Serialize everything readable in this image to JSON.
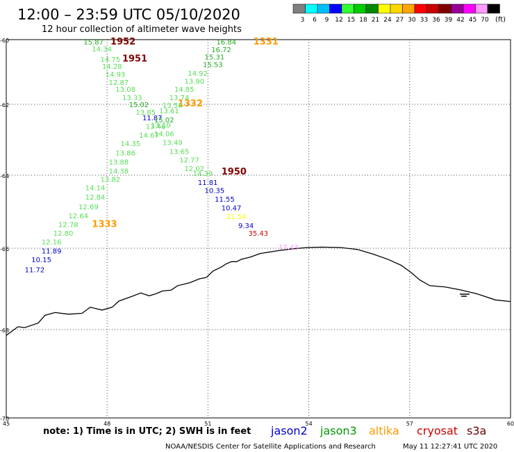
{
  "header": {
    "title": "12:00 – 23:59 UTC 05/10/2020",
    "subtitle": "12 hour collection of altimeter wave heights"
  },
  "legend": {
    "unit": "(ft)",
    "bins": [
      {
        "label": "3",
        "color": "#7f7f7f"
      },
      {
        "label": "6",
        "color": "#00ffff"
      },
      {
        "label": "9",
        "color": "#00bfff"
      },
      {
        "label": "12",
        "color": "#0000ff"
      },
      {
        "label": "15",
        "color": "#33ff33"
      },
      {
        "label": "18",
        "color": "#00cc00"
      },
      {
        "label": "21",
        "color": "#008800"
      },
      {
        "label": "24",
        "color": "#ffff00"
      },
      {
        "label": "27",
        "color": "#ffd700"
      },
      {
        "label": "30",
        "color": "#ffa500"
      },
      {
        "label": "33",
        "color": "#ff0000"
      },
      {
        "label": "36",
        "color": "#cc0000"
      },
      {
        "label": "39",
        "color": "#800000"
      },
      {
        "label": "42",
        "color": "#990099"
      },
      {
        "label": "45",
        "color": "#ff00ff"
      },
      {
        "label": "70",
        "color": "#ff99ff"
      },
      {
        "label": "",
        "color": "#000000"
      }
    ]
  },
  "axes": {
    "lat_labels": [
      "-60",
      "-62",
      "-64",
      "-66",
      "-68",
      "-70"
    ],
    "lon_labels": [
      "45",
      "48",
      "51",
      "54",
      "57",
      "60"
    ]
  },
  "note": "note:  1) Time is in UTC; 2) SWH is in feet",
  "satellites": [
    {
      "name": "jason2",
      "color": "#0000cc"
    },
    {
      "name": "jason3",
      "color": "#009900"
    },
    {
      "name": "altika",
      "color": "#ff9900"
    },
    {
      "name": "cryosat",
      "color": "#cc0000"
    },
    {
      "name": "s3a",
      "color": "#660000"
    }
  ],
  "footer": {
    "credit": "NOAA/NESDIS Center for Satellite Applications and Research",
    "timestamp": "May 11 12:27:41 UTC 2020"
  },
  "observations": [
    {
      "lat": -60.06,
      "lon": 47.3,
      "text": "15.87",
      "color": "#22aa22"
    },
    {
      "lat": -60.06,
      "lon": 48.1,
      "text": "1952",
      "color": "#800000",
      "bold": true
    },
    {
      "lat": -60.28,
      "lon": 47.55,
      "text": "14.34",
      "color": "#55dd55"
    },
    {
      "lat": -60.59,
      "lon": 48.45,
      "text": "1951",
      "color": "#800000",
      "bold": true
    },
    {
      "lat": -60.6,
      "lon": 47.8,
      "text": "14.75",
      "color": "#55dd55"
    },
    {
      "lat": -60.82,
      "lon": 47.85,
      "text": "14.28",
      "color": "#55dd55"
    },
    {
      "lat": -61.06,
      "lon": 47.95,
      "text": "14.93",
      "color": "#55dd55"
    },
    {
      "lat": -61.31,
      "lon": 48.05,
      "text": "12.87",
      "color": "#55dd55"
    },
    {
      "lat": -61.53,
      "lon": 48.25,
      "text": "13.08",
      "color": "#55dd55"
    },
    {
      "lat": -61.78,
      "lon": 48.45,
      "text": "13.33",
      "color": "#55dd55"
    },
    {
      "lat": -62.0,
      "lon": 48.65,
      "text": "15.02",
      "color": "#22aa22"
    },
    {
      "lat": -62.22,
      "lon": 48.85,
      "text": "13.85",
      "color": "#55dd55"
    },
    {
      "lat": -62.37,
      "lon": 49.05,
      "text": "11.87",
      "color": "#0000cc"
    },
    {
      "lat": -62.62,
      "lon": 49.15,
      "text": "13.46",
      "color": "#55dd55"
    },
    {
      "lat": -62.86,
      "lon": 48.95,
      "text": "14.67",
      "color": "#55dd55"
    },
    {
      "lat": -63.1,
      "lon": 48.4,
      "text": "14.35",
      "color": "#55dd55"
    },
    {
      "lat": -63.36,
      "lon": 48.25,
      "text": "13.86",
      "color": "#55dd55"
    },
    {
      "lat": -63.62,
      "lon": 48.05,
      "text": "13.88",
      "color": "#55dd55"
    },
    {
      "lat": -63.87,
      "lon": 48.05,
      "text": "14.38",
      "color": "#55dd55"
    },
    {
      "lat": -64.1,
      "lon": 47.8,
      "text": "13.82",
      "color": "#55dd55"
    },
    {
      "lat": -64.33,
      "lon": 47.35,
      "text": "14.14",
      "color": "#55dd55"
    },
    {
      "lat": -64.59,
      "lon": 47.35,
      "text": "12.84",
      "color": "#55dd55"
    },
    {
      "lat": -64.86,
      "lon": 47.15,
      "text": "12.69",
      "color": "#55dd55"
    },
    {
      "lat": -65.1,
      "lon": 46.85,
      "text": "12.64",
      "color": "#55dd55"
    },
    {
      "lat": -65.34,
      "lon": 46.55,
      "text": "12.78",
      "color": "#55dd55"
    },
    {
      "lat": -65.34,
      "lon": 47.55,
      "text": "1333",
      "color": "#ff9900",
      "bold": true
    },
    {
      "lat": -65.58,
      "lon": 46.4,
      "text": "12.80",
      "color": "#55dd55"
    },
    {
      "lat": -65.82,
      "lon": 46.05,
      "text": "12.16",
      "color": "#55dd55"
    },
    {
      "lat": -66.06,
      "lon": 46.05,
      "text": "11.89",
      "color": "#0000cc"
    },
    {
      "lat": -66.27,
      "lon": 45.75,
      "text": "10.15",
      "color": "#0000cc"
    },
    {
      "lat": -66.52,
      "lon": 45.55,
      "text": "11.72",
      "color": "#0000cc"
    },
    {
      "lat": -60.06,
      "lon": 51.25,
      "text": "16.84",
      "color": "#22aa22"
    },
    {
      "lat": -60.06,
      "lon": 52.35,
      "text": "1331",
      "color": "#ff9900",
      "bold": true
    },
    {
      "lat": -60.3,
      "lon": 51.1,
      "text": "16.72",
      "color": "#22aa22"
    },
    {
      "lat": -60.53,
      "lon": 50.9,
      "text": "15.31",
      "color": "#22aa22"
    },
    {
      "lat": -60.76,
      "lon": 50.85,
      "text": "15.53",
      "color": "#22aa22"
    },
    {
      "lat": -61.03,
      "lon": 50.4,
      "text": "14.92",
      "color": "#55dd55"
    },
    {
      "lat": -61.28,
      "lon": 50.3,
      "text": "13.90",
      "color": "#55dd55"
    },
    {
      "lat": -61.53,
      "lon": 50.0,
      "text": "14.85",
      "color": "#55dd55"
    },
    {
      "lat": -61.78,
      "lon": 49.85,
      "text": "13.74",
      "color": "#55dd55"
    },
    {
      "lat": -61.98,
      "lon": 50.1,
      "text": "1332",
      "color": "#ff9900",
      "bold": true
    },
    {
      "lat": -62.02,
      "lon": 49.65,
      "text": "13.58",
      "color": "#55dd55"
    },
    {
      "lat": -62.18,
      "lon": 49.55,
      "text": "13.61",
      "color": "#55dd55"
    },
    {
      "lat": -62.43,
      "lon": 49.4,
      "text": "15.02",
      "color": "#22aa22"
    },
    {
      "lat": -62.58,
      "lon": 49.3,
      "text": "13.10",
      "color": "#55dd55"
    },
    {
      "lat": -62.82,
      "lon": 49.4,
      "text": "14.06",
      "color": "#55dd55"
    },
    {
      "lat": -63.07,
      "lon": 49.65,
      "text": "13.49",
      "color": "#55dd55"
    },
    {
      "lat": -63.32,
      "lon": 49.85,
      "text": "13.65",
      "color": "#55dd55"
    },
    {
      "lat": -63.56,
      "lon": 50.15,
      "text": "12.77",
      "color": "#55dd55"
    },
    {
      "lat": -63.8,
      "lon": 50.3,
      "text": "12.02",
      "color": "#55dd55"
    },
    {
      "lat": -63.94,
      "lon": 50.55,
      "text": "14.39",
      "color": "#55dd55"
    },
    {
      "lat": -63.9,
      "lon": 51.4,
      "text": "1950",
      "color": "#800000",
      "bold": true
    },
    {
      "lat": -64.19,
      "lon": 50.7,
      "text": "11.81",
      "color": "#0000cc"
    },
    {
      "lat": -64.41,
      "lon": 50.9,
      "text": "10.35",
      "color": "#0000cc"
    },
    {
      "lat": -64.65,
      "lon": 51.2,
      "text": "11.55",
      "color": "#0000cc"
    },
    {
      "lat": -64.89,
      "lon": 51.4,
      "text": "10.47",
      "color": "#0000cc"
    },
    {
      "lat": -65.12,
      "lon": 51.55,
      "text": "21.54",
      "color": "#ffff00"
    },
    {
      "lat": -65.37,
      "lon": 51.9,
      "text": "9.34",
      "color": "#0000cc"
    },
    {
      "lat": -65.58,
      "lon": 52.2,
      "text": "35.43",
      "color": "#cc0000"
    },
    {
      "lat": -65.96,
      "lon": 53.1,
      "text": "17.43",
      "color": "#ff99ff"
    }
  ],
  "coastline_latlon": [
    [
      -66.72,
      50.95
    ],
    [
      -66.56,
      51.15
    ],
    [
      -66.46,
      51.4
    ],
    [
      -66.38,
      51.55
    ],
    [
      -66.33,
      51.7
    ],
    [
      -66.33,
      51.85
    ],
    [
      -66.27,
      52.0
    ],
    [
      -66.22,
      52.25
    ],
    [
      -66.13,
      52.55
    ],
    [
      -66.07,
      53.0
    ],
    [
      -66.02,
      53.45
    ],
    [
      -65.98,
      53.95
    ],
    [
      -65.97,
      54.4
    ],
    [
      -65.98,
      54.95
    ],
    [
      -66.03,
      55.45
    ],
    [
      -66.14,
      55.9
    ],
    [
      -66.27,
      56.35
    ],
    [
      -66.42,
      56.75
    ],
    [
      -66.6,
      57.05
    ],
    [
      -66.78,
      57.3
    ],
    [
      -66.92,
      57.6
    ],
    [
      -66.95,
      58.05
    ],
    [
      -67.02,
      58.5
    ],
    [
      -67.12,
      59.0
    ],
    [
      -67.27,
      59.55
    ],
    [
      -67.31,
      60.0
    ]
  ],
  "coastline_west_latlon": [
    [
      -68.13,
      45.0
    ],
    [
      -67.93,
      45.35
    ],
    [
      -67.95,
      45.55
    ],
    [
      -67.84,
      45.95
    ],
    [
      -67.65,
      46.15
    ],
    [
      -67.58,
      46.45
    ],
    [
      -67.62,
      46.85
    ],
    [
      -67.6,
      47.25
    ],
    [
      -67.45,
      47.5
    ],
    [
      -67.52,
      47.85
    ],
    [
      -67.45,
      48.15
    ],
    [
      -67.3,
      48.35
    ],
    [
      -67.18,
      48.75
    ],
    [
      -67.1,
      49.0
    ],
    [
      -67.17,
      49.25
    ],
    [
      -67.12,
      49.45
    ],
    [
      -67.05,
      49.65
    ],
    [
      -67.03,
      49.9
    ],
    [
      -66.92,
      50.1
    ],
    [
      -66.85,
      50.45
    ],
    [
      -66.75,
      50.75
    ],
    [
      -66.72,
      50.95
    ]
  ]
}
